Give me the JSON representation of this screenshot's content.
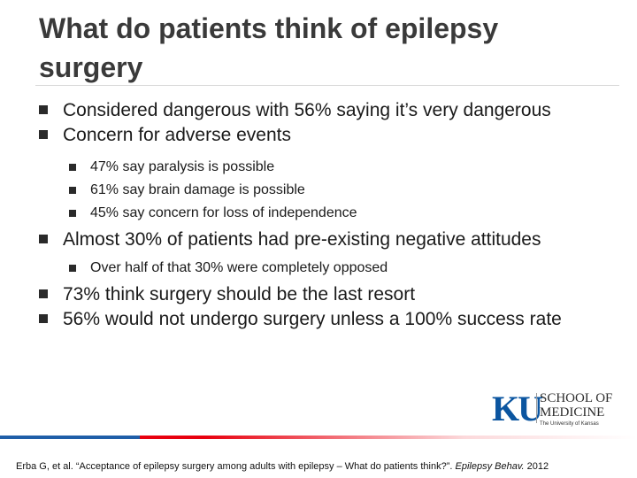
{
  "slide": {
    "title": "What do patients think of epilepsy surgery",
    "bullets": [
      {
        "level": 1,
        "text": "Considered dangerous with 56% saying it’s very dangerous"
      },
      {
        "level": 1,
        "text": "Concern for adverse events"
      },
      {
        "level": 2,
        "text": "47% say paralysis is possible"
      },
      {
        "level": 2,
        "text": "61% say brain damage is possible"
      },
      {
        "level": 2,
        "text": "45% say concern for loss of independence"
      },
      {
        "level": 1,
        "text": "Almost 30% of patients had pre-existing negative attitudes"
      },
      {
        "level": 2,
        "text": "Over half of that 30% were completely opposed"
      },
      {
        "level": 1,
        "text": "73% think surgery should be the last resort"
      },
      {
        "level": 1,
        "text": "56% would not undergo surgery unless a 100% success rate"
      }
    ]
  },
  "logo": {
    "mark": "KU",
    "line1": "SCHOOL OF",
    "line2": "MEDICINE",
    "subtitle": "The University of Kansas"
  },
  "citation": {
    "text": "Erba G, et al. “Acceptance of epilepsy surgery among adults with epilepsy – What do patients think?”.",
    "journal": "Epilepsy Behav.",
    "year": "2012"
  },
  "colors": {
    "accent_blue": "#1f5ea8",
    "accent_red": "#e8000e",
    "logo_blue": "#0b55a0"
  }
}
